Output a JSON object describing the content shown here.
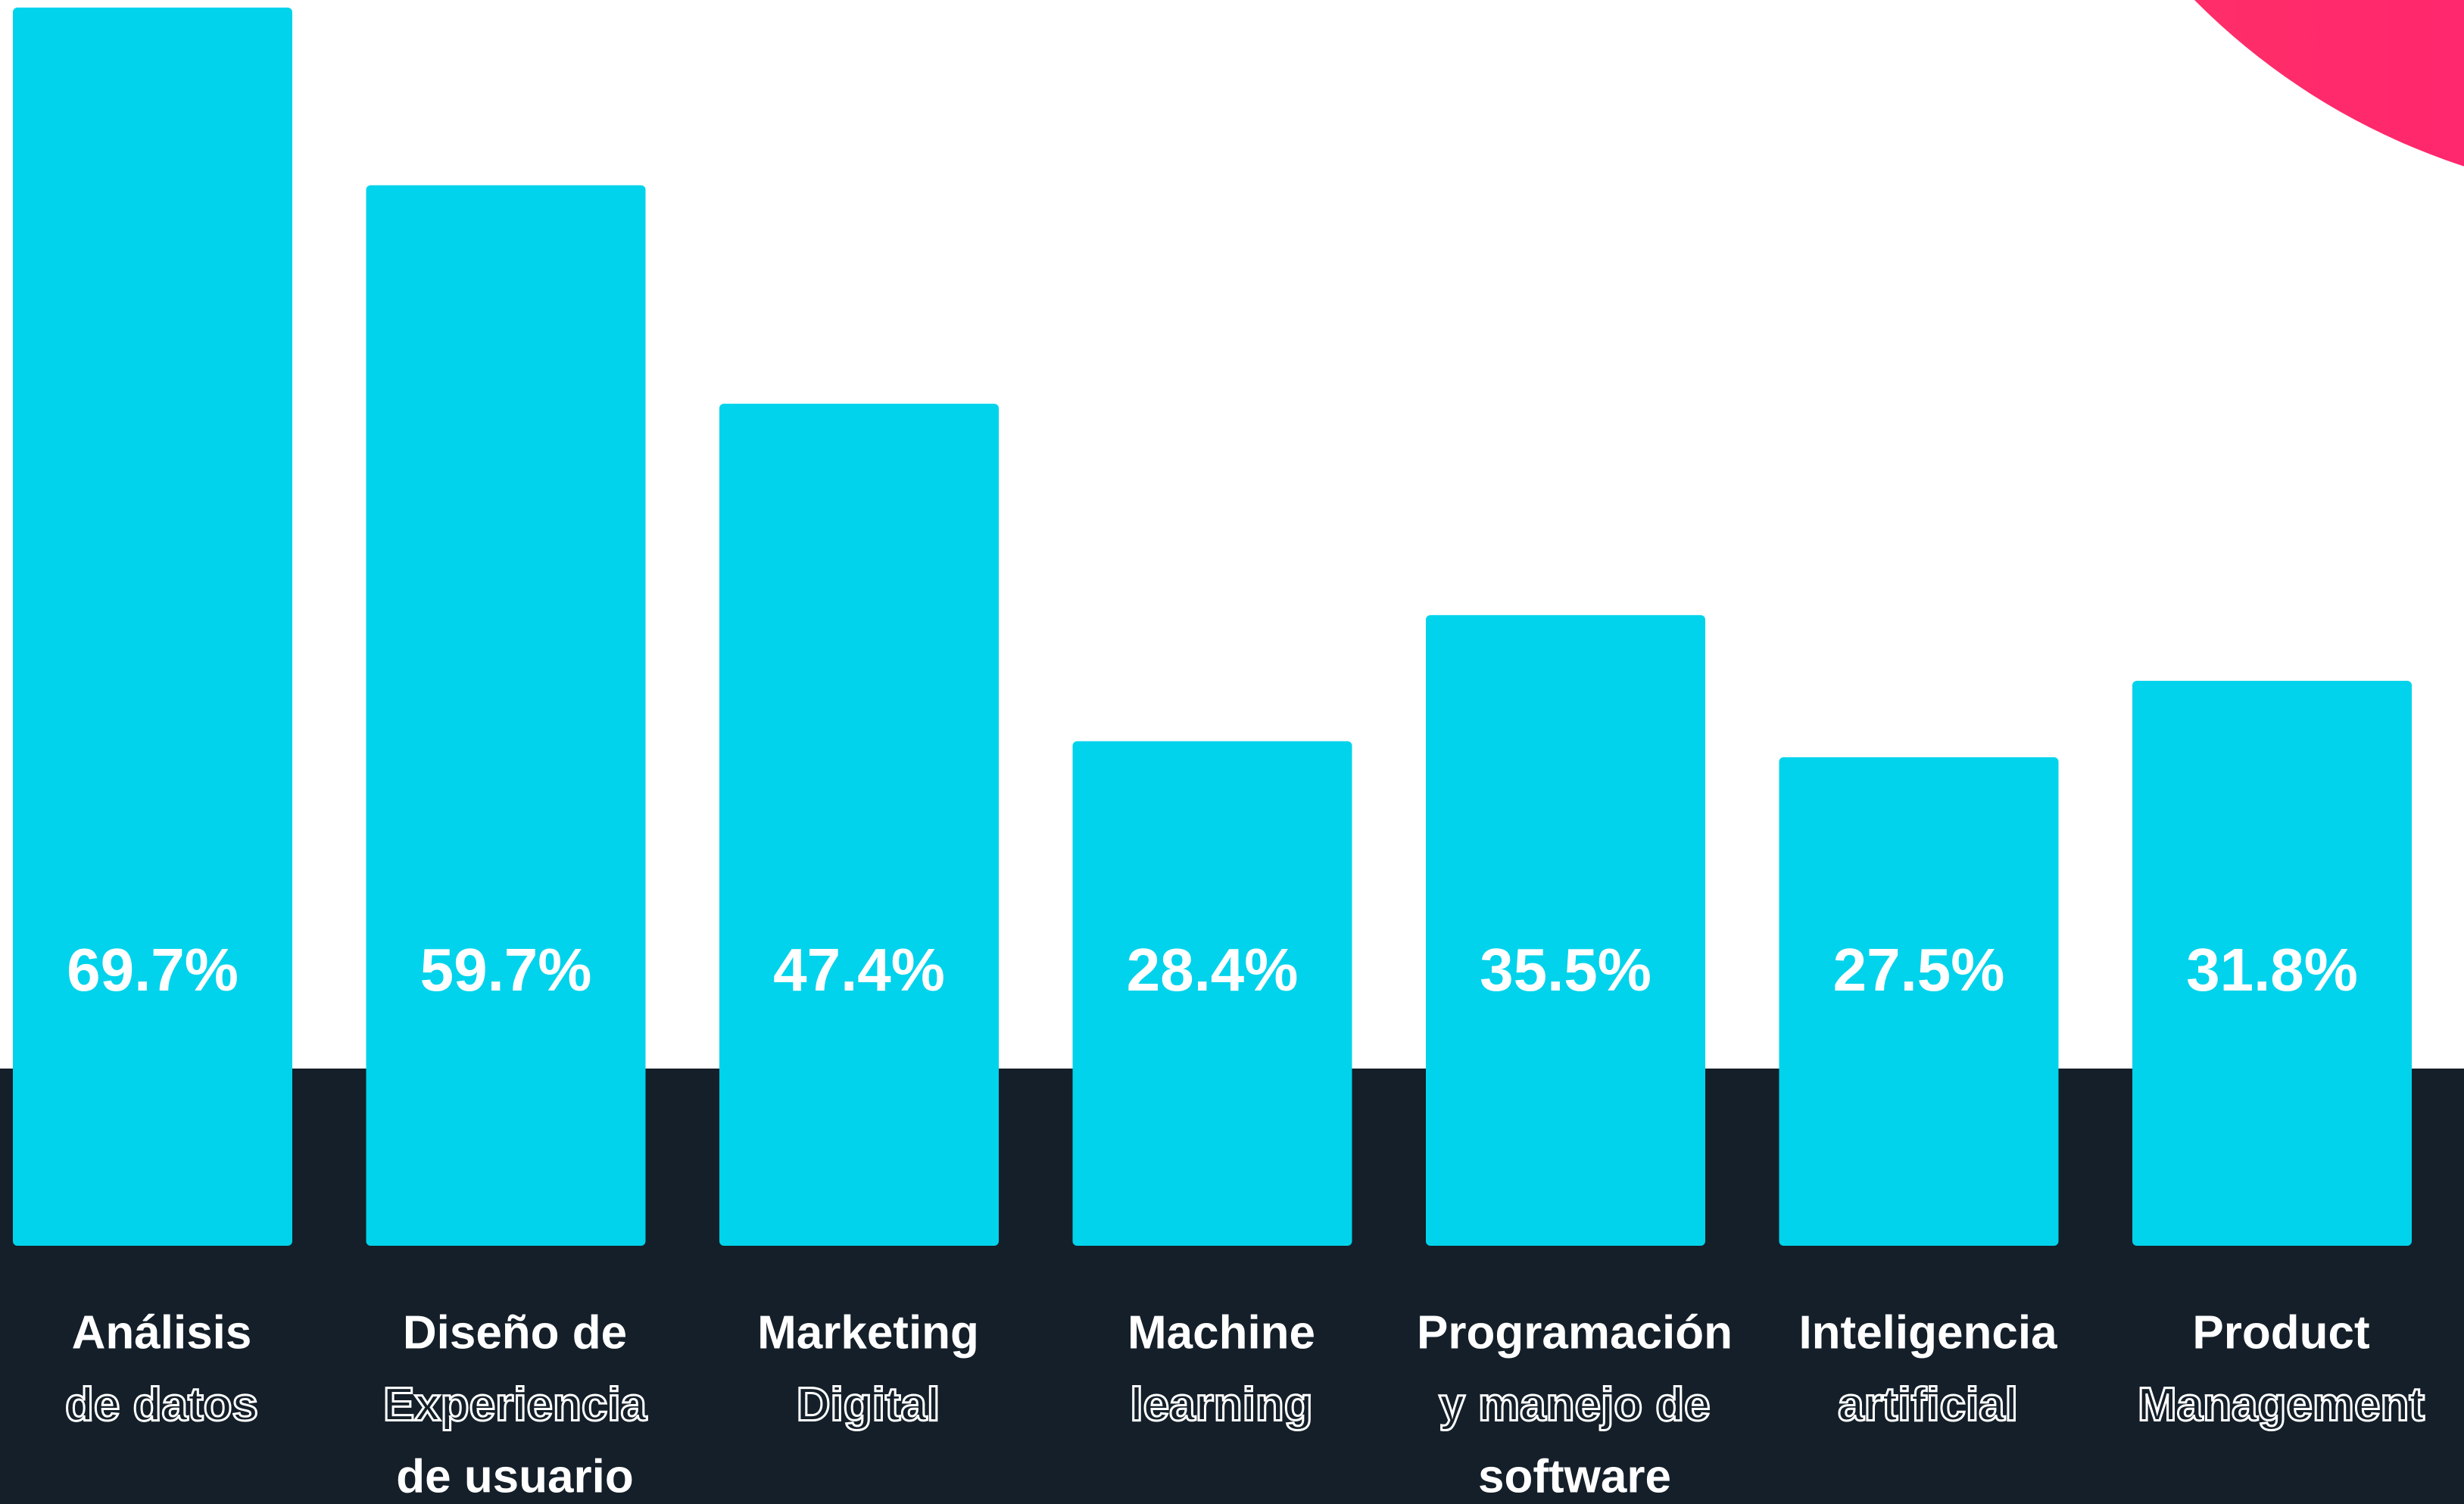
{
  "chart_data": {
    "type": "bar",
    "categories": [
      [
        "Análisis",
        "de datos"
      ],
      [
        "Diseño de",
        "Experiencia",
        "de usuario"
      ],
      [
        "Marketing",
        "Digital"
      ],
      [
        "Machine",
        "learning"
      ],
      [
        "Programación",
        "y manejo de",
        "software"
      ],
      [
        "Inteligencia",
        "artificial"
      ],
      [
        "Product",
        "Management"
      ]
    ],
    "values": [
      69.7,
      59.7,
      47.4,
      28.4,
      35.5,
      27.5,
      31.8
    ],
    "value_labels": [
      "69.7%",
      "59.7%",
      "47.4%",
      "28.4%",
      "35.5%",
      "27.5%",
      "31.8%"
    ],
    "color": "#00d3eb"
  }
}
